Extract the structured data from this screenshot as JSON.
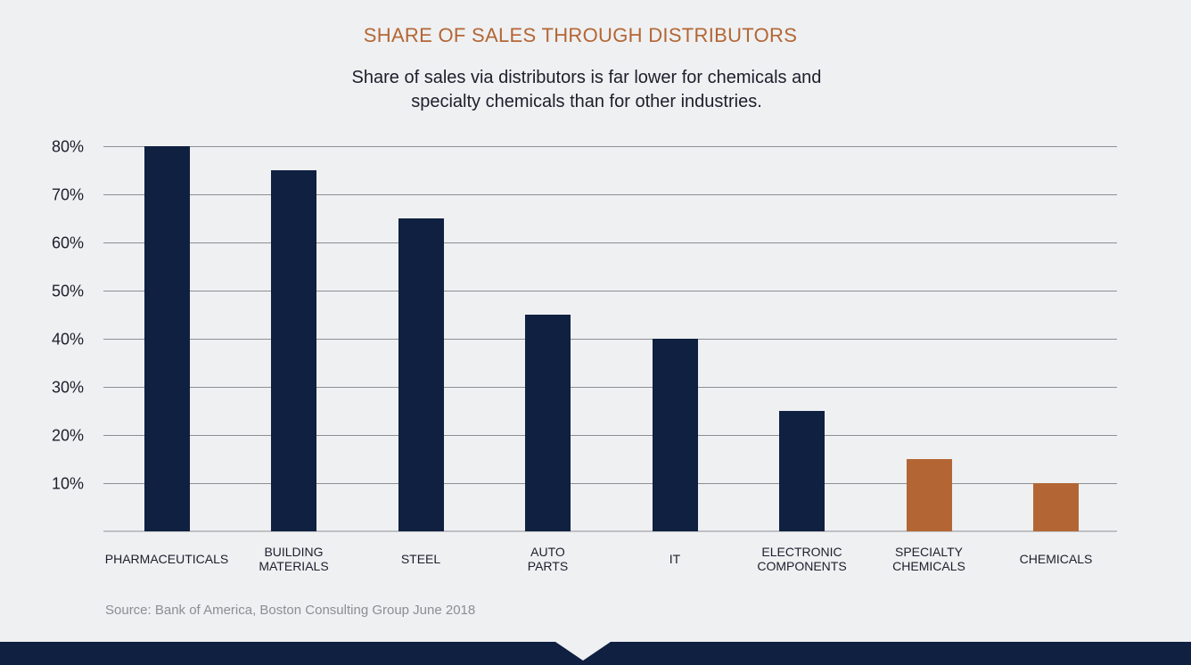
{
  "colors": {
    "accent": "#b36634",
    "primary": "#0f2040",
    "text": "#1b1f2c",
    "grid": "#8c8f94",
    "source": "#8b8e93",
    "background": "#eff0f2"
  },
  "header": {
    "title": "SHARE OF SALES THROUGH DISTRIBUTORS",
    "subtitle_line1": "Share of sales via distributors is far lower for chemicals and",
    "subtitle_line2": "specialty chemicals than for other industries."
  },
  "footer": {
    "source": "Source: Bank of America, Boston Consulting Group June 2018"
  },
  "chart_data": {
    "type": "bar",
    "title": "SHARE OF SALES THROUGH DISTRIBUTORS",
    "xlabel": "",
    "ylabel": "",
    "ylim": [
      0,
      80
    ],
    "grid": true,
    "yticks": [
      {
        "value": 10,
        "label": "10%"
      },
      {
        "value": 20,
        "label": "20%"
      },
      {
        "value": 30,
        "label": "30%"
      },
      {
        "value": 40,
        "label": "40%"
      },
      {
        "value": 50,
        "label": "50%"
      },
      {
        "value": 60,
        "label": "60%"
      },
      {
        "value": 70,
        "label": "70%"
      },
      {
        "value": 80,
        "label": "80%"
      }
    ],
    "categories": [
      [
        "PHARMACEUTICALS"
      ],
      [
        "BUILDING",
        "MATERIALS"
      ],
      [
        "STEEL"
      ],
      [
        "AUTO",
        "PARTS"
      ],
      [
        "IT"
      ],
      [
        "ELECTRONIC",
        "COMPONENTS"
      ],
      [
        "SPECIALTY",
        "CHEMICALS"
      ],
      [
        "CHEMICALS"
      ]
    ],
    "values": [
      80,
      75,
      65,
      45,
      40,
      25,
      15,
      10
    ],
    "highlight": [
      false,
      false,
      false,
      false,
      false,
      false,
      true,
      true
    ]
  }
}
